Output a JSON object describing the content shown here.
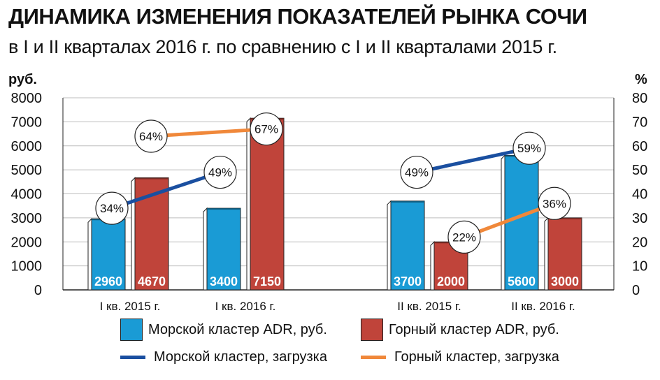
{
  "header": {
    "title": "ДИНАМИКА ИЗМЕНЕНИЯ ПОКАЗАТЕЛЕЙ РЫНКА СОЧИ",
    "subtitle": "в I и II кварталах 2016 г. по сравнению с I и II кварталами 2015 г."
  },
  "colors": {
    "sea_bar": "#1a9bd5",
    "mountain_bar": "#c0443a",
    "sea_line": "#1a4fa0",
    "mountain_line": "#f0883a"
  },
  "chart_data": {
    "type": "bar",
    "categories": [
      "I кв. 2015 г.",
      "I кв. 2016 г.",
      "II кв. 2015 г.",
      "II кв. 2016 г."
    ],
    "ylabel": "руб.",
    "ylabel_right": "%",
    "ylim": [
      0,
      8000
    ],
    "ylim_right": [
      0,
      80
    ],
    "y_ticks": [
      "8000",
      "7000",
      "6000",
      "5000",
      "4000",
      "3000",
      "2000",
      "1000",
      "0"
    ],
    "y_ticks_right": [
      "80",
      "70",
      "60",
      "50",
      "40",
      "30",
      "20",
      "10",
      "0"
    ],
    "bar_series": [
      {
        "name": "Морской кластер ADR, руб.",
        "values": [
          2960,
          3400,
          3700,
          5600
        ],
        "labels": [
          "2960",
          "3400",
          "3700",
          "5600"
        ]
      },
      {
        "name": "Горный кластер ADR, руб.",
        "values": [
          4670,
          7150,
          2000,
          3000
        ],
        "labels": [
          "4670",
          "7150",
          "2000",
          "3000"
        ]
      }
    ],
    "line_series": [
      {
        "name": "Морской кластер, загрузка",
        "segments": [
          {
            "categories": [
              "I кв. 2015 г.",
              "I кв. 2016 г."
            ],
            "values": [
              34,
              49
            ],
            "labels": [
              "34%",
              "49%"
            ]
          },
          {
            "categories": [
              "II кв. 2015 г.",
              "II кв. 2016 г."
            ],
            "values": [
              49,
              59
            ],
            "labels": [
              "49%",
              "59%"
            ]
          }
        ]
      },
      {
        "name": "Горный кластер, загрузка",
        "segments": [
          {
            "categories": [
              "I кв. 2015 г.",
              "I кв. 2016 г."
            ],
            "values": [
              64,
              67
            ],
            "labels": [
              "64%",
              "67%"
            ]
          },
          {
            "categories": [
              "II кв. 2015 г.",
              "II кв. 2016 г."
            ],
            "values": [
              22,
              36
            ],
            "labels": [
              "22%",
              "36%"
            ]
          }
        ]
      }
    ],
    "grid": true,
    "legend_position": "bottom"
  }
}
